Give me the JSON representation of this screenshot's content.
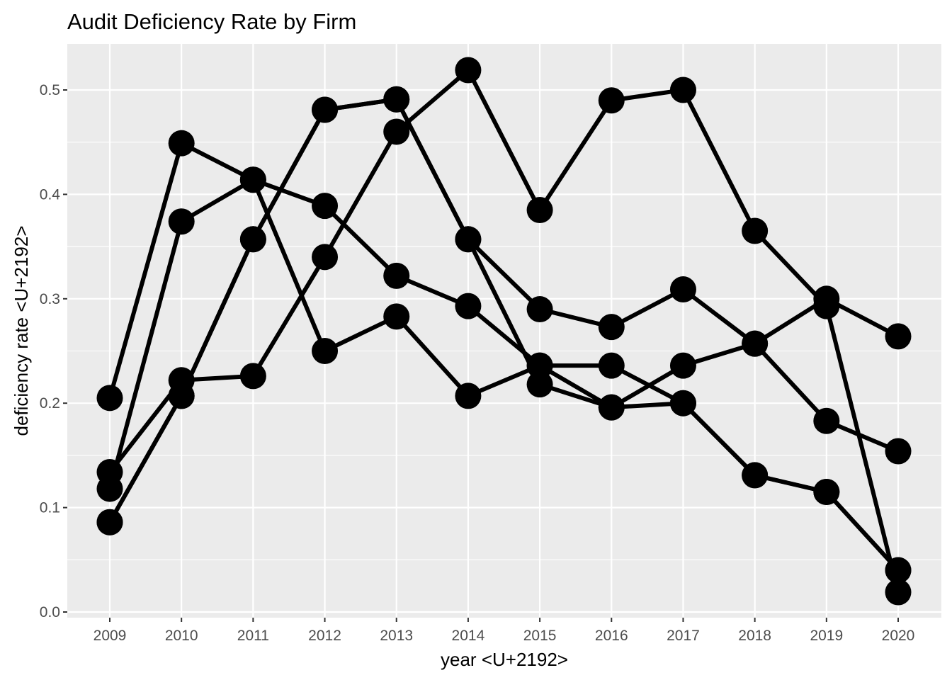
{
  "chart_data": {
    "type": "line",
    "title": "Audit Deficiency Rate by Firm",
    "xlabel": "year <U+2192>",
    "ylabel": "deficiency rate <U+2192>",
    "x": [
      2009,
      2010,
      2011,
      2012,
      2013,
      2014,
      2015,
      2016,
      2017,
      2018,
      2019,
      2020
    ],
    "xlim": [
      2008.5,
      2020.6
    ],
    "ylim": [
      -0.01,
      0.545
    ],
    "x_ticks": [
      "2009",
      "2010",
      "2011",
      "2012",
      "2013",
      "2014",
      "2015",
      "2016",
      "2017",
      "2018",
      "2019",
      "2020"
    ],
    "y_ticks": [
      "0.0",
      "0.1",
      "0.2",
      "0.3",
      "0.4",
      "0.5"
    ],
    "y_tick_values": [
      0.0,
      0.1,
      0.2,
      0.3,
      0.4,
      0.5
    ],
    "grid": true,
    "background": "#ebebeb",
    "line_color": "#000000",
    "series": [
      {
        "values": [
          0.205,
          0.449,
          0.414,
          0.389,
          0.322,
          0.293,
          0.236,
          0.236,
          0.2,
          0.131,
          0.115,
          0.04
        ]
      },
      {
        "values": [
          0.118,
          0.374,
          0.414,
          0.25,
          0.283,
          0.207,
          0.236,
          0.196,
          0.236,
          0.257,
          0.3,
          0.264
        ]
      },
      {
        "values": [
          0.134,
          0.222,
          0.226,
          0.34,
          0.46,
          0.519,
          0.385,
          0.49,
          0.5,
          0.365,
          0.293,
          0.019
        ]
      },
      {
        "values": [
          0.086,
          0.207,
          0.357,
          0.481,
          0.491,
          0.357,
          0.218,
          0.196,
          0.2,
          0.131,
          0.115,
          0.04
        ]
      },
      {
        "values": [
          0.086,
          0.207,
          0.357,
          0.481,
          0.491,
          0.357,
          0.29,
          0.273,
          0.309,
          0.257,
          0.183,
          0.154
        ]
      }
    ]
  }
}
